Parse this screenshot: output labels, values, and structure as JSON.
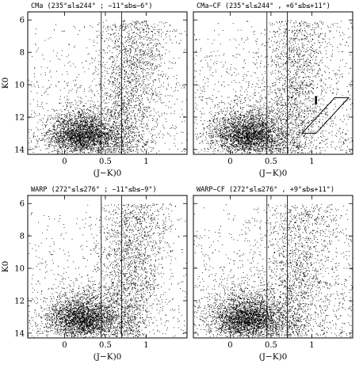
{
  "chart_data": [
    {
      "type": "scatter",
      "title": "CMa (235°≤l≤244° ; −11°≤b≤−6°)",
      "xlabel": "(J−K)0",
      "ylabel": "K0",
      "xlim": [
        -0.45,
        1.5
      ],
      "ylim": [
        14.3,
        5.5
      ],
      "xticks": [
        "0",
        "0.5",
        "1"
      ],
      "yticks": [
        "6",
        "8",
        "10",
        "12",
        "14"
      ],
      "guide_lines_x": [
        0.45,
        0.7
      ],
      "density_note": "dense clump 0–0.7 at K0 12–14; plume right of 0.45 up to K0 6"
    },
    {
      "type": "scatter",
      "title": "CMa−CF (235°≤l≤244° , +6°≤b≤+11°)",
      "xlabel": "(J−K)0",
      "ylabel": "",
      "xlim": [
        -0.45,
        1.5
      ],
      "ylim": [
        14.3,
        5.5
      ],
      "xticks": [
        "0",
        "0.5",
        "1"
      ],
      "yticks": [],
      "guide_lines_x": [
        0.45,
        0.7
      ],
      "annotation_box": {
        "corners": [
          [
            0.88,
            13.0
          ],
          [
            1.05,
            13.0
          ],
          [
            1.45,
            10.8
          ],
          [
            1.28,
            10.8
          ]
        ]
      },
      "arrow_x": 1.05
    },
    {
      "type": "scatter",
      "title": "WARP (272°≤l≤276° ; −11°≤b≤−9°)",
      "xlabel": "(J−K)0",
      "ylabel": "K0",
      "xlim": [
        -0.45,
        1.5
      ],
      "ylim": [
        14.3,
        5.5
      ],
      "xticks": [
        "0",
        "0.5",
        "1"
      ],
      "yticks": [
        "6",
        "8",
        "10",
        "12",
        "14"
      ],
      "guide_lines_x": [
        0.45,
        0.7
      ]
    },
    {
      "type": "scatter",
      "title": "WARP−CF (272°≤l≤276° , +9°≤b≤+11°)",
      "xlabel": "(J−K)0",
      "ylabel": "",
      "xlim": [
        -0.45,
        1.5
      ],
      "ylim": [
        14.3,
        5.5
      ],
      "xticks": [
        "0",
        "0.5",
        "1"
      ],
      "yticks": [],
      "guide_lines_x": [
        0.45,
        0.7
      ]
    }
  ]
}
